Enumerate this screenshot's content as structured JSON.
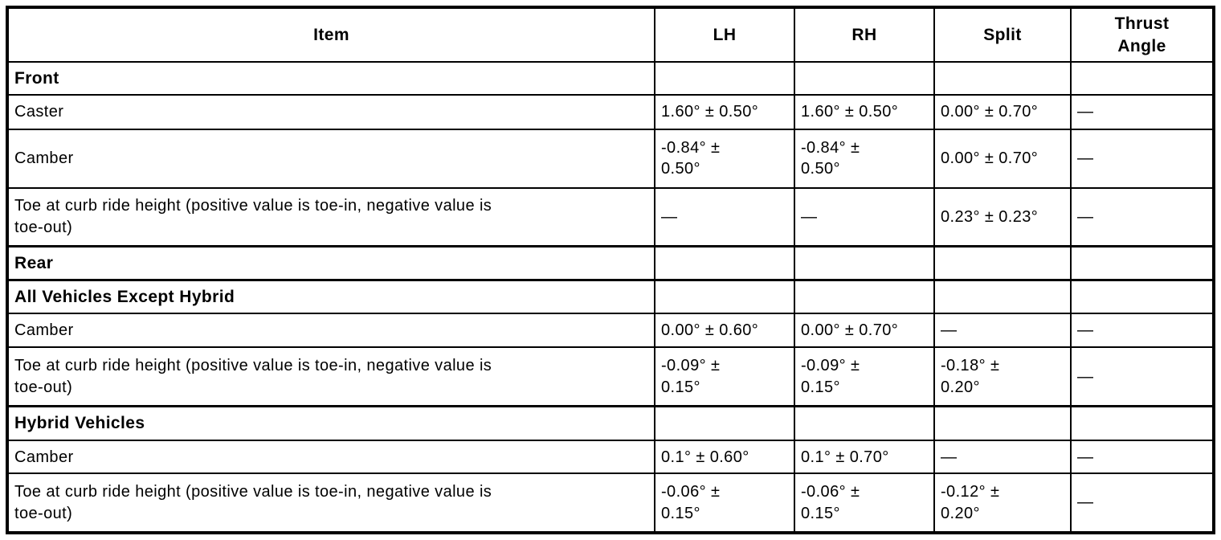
{
  "table": {
    "header": {
      "item": "Item",
      "lh": "LH",
      "rh": "RH",
      "split": "Split",
      "thrust": "Thrust\nAngle"
    },
    "rows": [
      {
        "kind": "section",
        "item": "Front",
        "lh": "",
        "rh": "",
        "split": "",
        "thrust": ""
      },
      {
        "kind": "data",
        "item": "Caster",
        "lh": "1.60° ± 0.50°",
        "rh": "1.60° ± 0.50°",
        "split": "0.00° ± 0.70°",
        "thrust": "—"
      },
      {
        "kind": "data",
        "item": "Camber",
        "lh": "-0.84° ±\n0.50°",
        "rh": "-0.84° ±\n0.50°",
        "split": "0.00° ± 0.70°",
        "thrust": "—"
      },
      {
        "kind": "data",
        "item": "Toe at curb ride height (positive value is toe-in, negative value is\ntoe-out)",
        "lh": "—",
        "rh": "—",
        "split": "0.23° ± 0.23°",
        "thrust": "—"
      },
      {
        "kind": "section",
        "item": "Rear",
        "lh": "",
        "rh": "",
        "split": "",
        "thrust": ""
      },
      {
        "kind": "section",
        "item": "All Vehicles Except Hybrid",
        "lh": "",
        "rh": "",
        "split": "",
        "thrust": ""
      },
      {
        "kind": "data",
        "item": "Camber",
        "lh": "0.00° ± 0.60°",
        "rh": "0.00° ± 0.70°",
        "split": "—",
        "thrust": "—"
      },
      {
        "kind": "data",
        "item": "Toe at curb ride height (positive value is toe-in, negative value is\ntoe-out)",
        "lh": "-0.09° ±\n0.15°",
        "rh": "-0.09° ±\n0.15°",
        "split": "-0.18° ±\n0.20°",
        "thrust": "—"
      },
      {
        "kind": "section",
        "item": "Hybrid Vehicles",
        "lh": "",
        "rh": "",
        "split": "",
        "thrust": ""
      },
      {
        "kind": "data",
        "item": "Camber",
        "lh": "0.1° ± 0.60°",
        "rh": "0.1° ± 0.70°",
        "split": "—",
        "thrust": "—"
      },
      {
        "kind": "data",
        "item": "Toe at curb ride height (positive value is toe-in, negative value is\ntoe-out)",
        "lh": "-0.06° ±\n0.15°",
        "rh": "-0.06° ±\n0.15°",
        "split": "-0.12° ±\n0.20°",
        "thrust": "—"
      }
    ],
    "empty_value": "—",
    "border_color": "#000000",
    "text_color": "#000000",
    "background_color": "#ffffff"
  }
}
